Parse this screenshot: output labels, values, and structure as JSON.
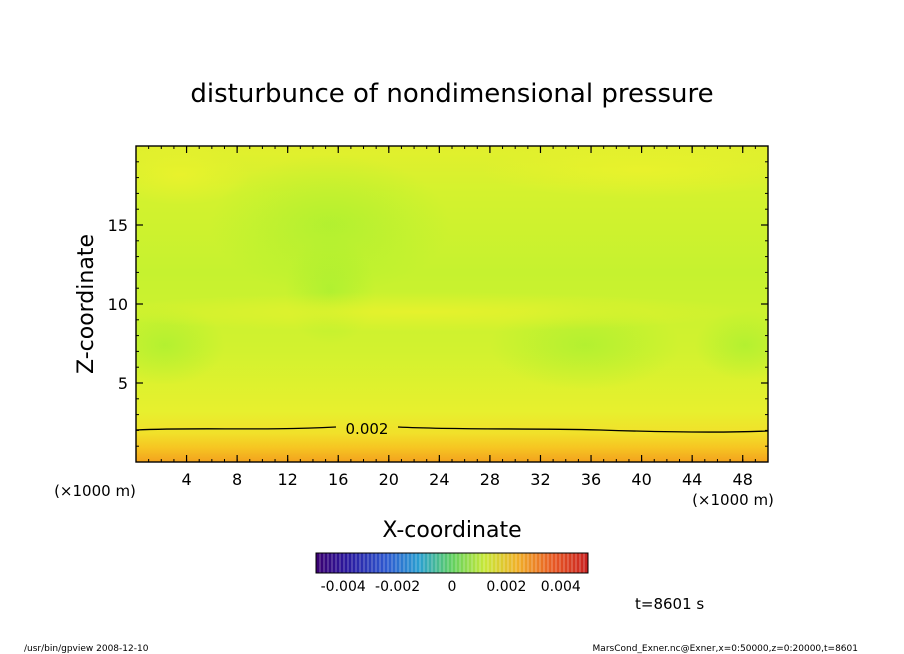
{
  "chart_data": {
    "type": "heatmap",
    "title": "disturbunce of nondimensional pressure",
    "xlabel": "X-coordinate",
    "ylabel": "Z-coordinate",
    "x_unit": "(×1000 m)",
    "x_unit_right": "(×1000 m)",
    "xlim": [
      0,
      50
    ],
    "ylim": [
      0,
      20
    ],
    "x_ticks": [
      "4",
      "8",
      "12",
      "16",
      "20",
      "24",
      "28",
      "32",
      "36",
      "40",
      "44",
      "48"
    ],
    "y_ticks": [
      "5",
      "10",
      "15"
    ],
    "contour": {
      "level": 0.002,
      "label": "0.002"
    },
    "colorbar": {
      "range": [
        -0.005,
        0.005
      ],
      "labels": [
        "-0.004",
        "-0.002",
        "0",
        "0.002",
        "0.004"
      ]
    },
    "time_label": "t=8601 s",
    "colors": {
      "low": "#f0a020",
      "mid": "#e8ee30",
      "high": "#b8f030",
      "contour": "#000000"
    }
  },
  "footer": {
    "left": "/usr/bin/gpview   2008-12-10",
    "right": "MarsCond_Exner.nc@Exner,x=0:50000,z=0:20000,t=8601"
  }
}
